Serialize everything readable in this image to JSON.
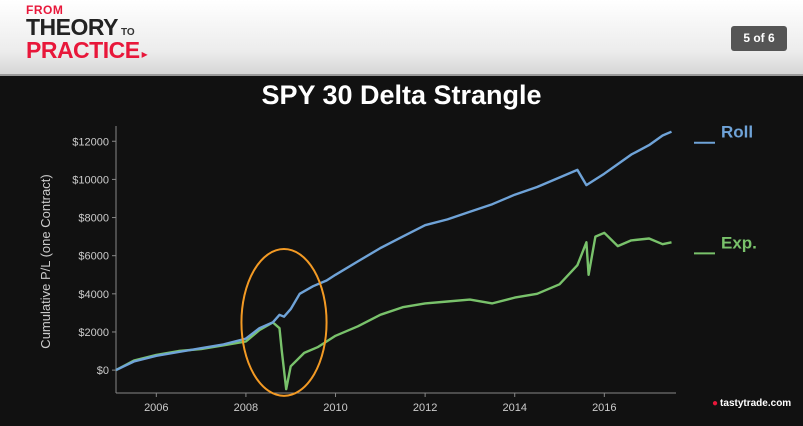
{
  "header": {
    "logo": {
      "from": "FROM",
      "theory": "THEORY",
      "to": "TO",
      "practice": "PRACTICE"
    },
    "page_indicator": "5 of 6"
  },
  "brand": {
    "name": "tastytrade",
    "suffix": ".com"
  },
  "colors": {
    "roll": "#6fa3d8",
    "exp": "#79c26b",
    "circle": "#f39a24",
    "accent": "#e8173a"
  },
  "chart_data": {
    "type": "line",
    "title": "SPY 30 Delta Strangle",
    "xlabel": "",
    "ylabel": "Cumulative P/L (one Contract)",
    "xlim": [
      2005.1,
      2017.6
    ],
    "ylim": [
      -1200,
      12800
    ],
    "xticks": [
      2006,
      2008,
      2010,
      2012,
      2014,
      2016
    ],
    "yticks": [
      0,
      2000,
      4000,
      6000,
      8000,
      10000,
      12000
    ],
    "ytick_labels": [
      "$0",
      "$2000",
      "$4000",
      "$6000",
      "$8000",
      "$10000",
      "$12000"
    ],
    "grid": false,
    "legend_position": "right",
    "series": [
      {
        "name": "Roll",
        "x": [
          2005.1,
          2005.5,
          2006.0,
          2006.5,
          2007.0,
          2007.5,
          2008.0,
          2008.3,
          2008.6,
          2008.75,
          2008.85,
          2009.0,
          2009.2,
          2009.5,
          2009.8,
          2010.0,
          2010.5,
          2011.0,
          2011.5,
          2012.0,
          2012.5,
          2013.0,
          2013.5,
          2014.0,
          2014.5,
          2015.0,
          2015.4,
          2015.6,
          2015.8,
          2016.0,
          2016.3,
          2016.6,
          2017.0,
          2017.3,
          2017.5
        ],
        "y": [
          0,
          450,
          750,
          950,
          1150,
          1350,
          1650,
          2200,
          2500,
          2900,
          2800,
          3200,
          4000,
          4400,
          4700,
          5000,
          5700,
          6400,
          7000,
          7600,
          7900,
          8300,
          8700,
          9200,
          9600,
          10100,
          10500,
          9700,
          10000,
          10300,
          10800,
          11300,
          11800,
          12300,
          12500
        ]
      },
      {
        "name": "Exp.",
        "x": [
          2005.1,
          2005.5,
          2006.0,
          2006.5,
          2007.0,
          2007.5,
          2008.0,
          2008.3,
          2008.6,
          2008.75,
          2008.8,
          2008.9,
          2009.0,
          2009.3,
          2009.6,
          2010.0,
          2010.5,
          2011.0,
          2011.5,
          2012.0,
          2012.5,
          2013.0,
          2013.5,
          2014.0,
          2014.5,
          2015.0,
          2015.4,
          2015.6,
          2015.65,
          2015.8,
          2016.0,
          2016.3,
          2016.6,
          2017.0,
          2017.3,
          2017.5
        ],
        "y": [
          0,
          500,
          800,
          1000,
          1100,
          1300,
          1500,
          2100,
          2500,
          2200,
          1000,
          -1000,
          200,
          900,
          1200,
          1800,
          2300,
          2900,
          3300,
          3500,
          3600,
          3700,
          3500,
          3800,
          4000,
          4500,
          5500,
          6700,
          5000,
          7000,
          7200,
          6500,
          6800,
          6900,
          6600,
          6700
        ]
      }
    ],
    "annotations": [
      {
        "type": "ellipse",
        "color": "#f39a24",
        "cx": 2008.85,
        "cy": 2500,
        "rx": 0.95,
        "ry": 3850
      }
    ]
  }
}
